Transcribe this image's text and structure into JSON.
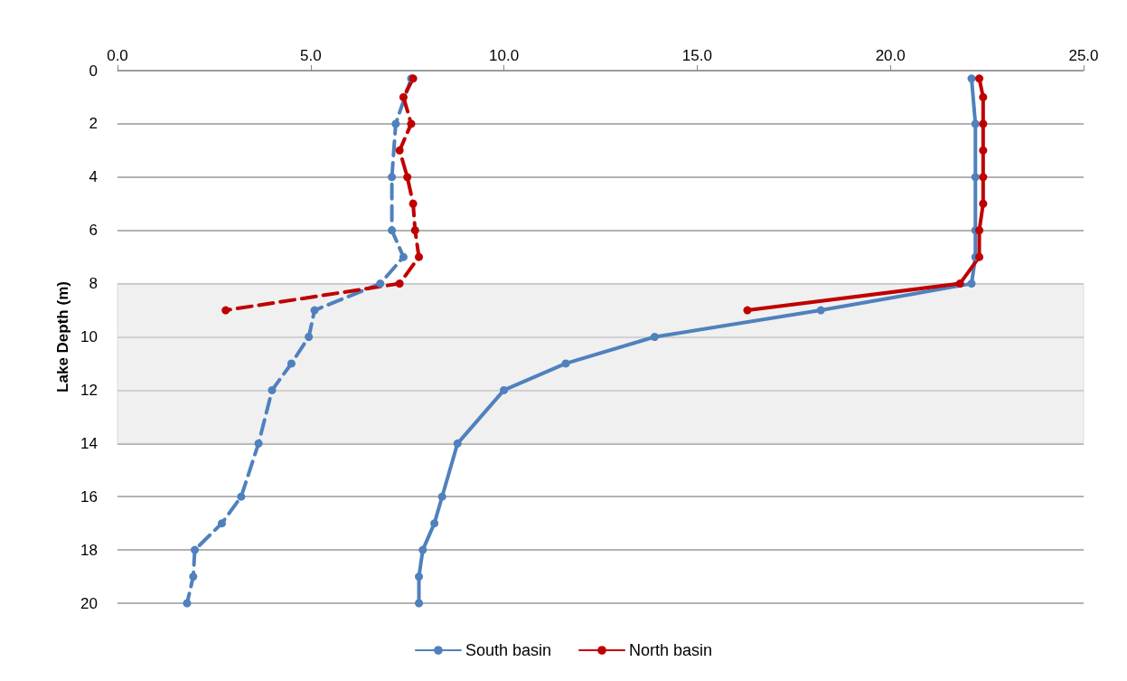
{
  "chart_data": {
    "type": "line",
    "ylabel": "Lake Depth (m)",
    "xlim": [
      0,
      25
    ],
    "xticks": [
      {
        "value": 0,
        "label": "0.0"
      },
      {
        "value": 5,
        "label": "5.0"
      },
      {
        "value": 10,
        "label": "10.0"
      },
      {
        "value": 15,
        "label": "15.0"
      },
      {
        "value": 20,
        "label": "20.0"
      },
      {
        "value": 25,
        "label": "25.0"
      }
    ],
    "ylim": [
      20,
      0
    ],
    "yticks": [
      0,
      2,
      4,
      6,
      8,
      10,
      12,
      14,
      16,
      18,
      20
    ],
    "grid": "y",
    "legend": "bottom",
    "marker": "circle",
    "bands": [
      {
        "axis": "y",
        "from": 8,
        "to": 14,
        "color": "#e6e6e6"
      }
    ],
    "series": [
      {
        "name": "South basin",
        "color": "#4f81bd",
        "line_style": "solid",
        "x": [
          22.1,
          22.2,
          22.2,
          22.2,
          22.2,
          22.1,
          18.2,
          13.9,
          11.6,
          10.0,
          8.8,
          8.4,
          8.2,
          7.9,
          7.8,
          7.8
        ],
        "values": [
          0.3,
          2,
          4,
          6,
          7,
          8,
          9,
          10,
          11,
          12,
          14,
          16,
          17,
          18,
          19,
          20
        ]
      },
      {
        "name": "North basin",
        "color": "#c00000",
        "line_style": "solid",
        "x": [
          22.3,
          22.4,
          22.4,
          22.4,
          22.4,
          22.4,
          22.3,
          22.3,
          21.8,
          16.3
        ],
        "values": [
          0.3,
          1,
          2,
          3,
          4,
          5,
          6,
          7,
          8,
          9
        ]
      },
      {
        "color": "#4f81bd",
        "line_style": "dashed",
        "x": [
          7.6,
          7.2,
          7.1,
          7.1,
          7.4,
          6.8,
          5.1,
          4.95,
          4.5,
          4.0,
          3.65,
          3.2,
          2.7,
          2.0,
          1.96,
          1.8
        ],
        "values": [
          0.3,
          2,
          4,
          6,
          7,
          8,
          9,
          10,
          11,
          12,
          14,
          16,
          17,
          18,
          19,
          20
        ]
      },
      {
        "color": "#c00000",
        "line_style": "dashed",
        "x": [
          7.65,
          7.4,
          7.6,
          7.3,
          7.5,
          7.65,
          7.7,
          7.8,
          7.3,
          2.8
        ],
        "values": [
          0.3,
          1,
          2,
          3,
          4,
          5,
          6,
          7,
          8,
          9
        ]
      }
    ]
  }
}
